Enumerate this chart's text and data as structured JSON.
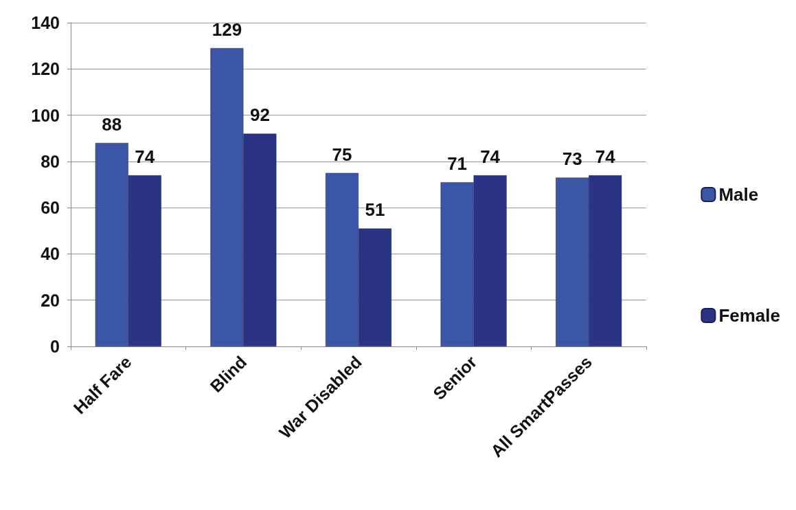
{
  "chart_data": {
    "type": "bar",
    "categories": [
      "Half Fare",
      "Blind",
      "War Disabled",
      "Senior",
      "All SmartPasses"
    ],
    "series": [
      {
        "name": "Male",
        "color": "#3c56a6",
        "values": [
          88,
          129,
          75,
          71,
          73
        ]
      },
      {
        "name": "Female",
        "color": "#2b3384",
        "values": [
          74,
          92,
          51,
          74,
          74
        ]
      }
    ],
    "ylim": [
      0,
      140
    ],
    "yticks": [
      0,
      20,
      40,
      60,
      80,
      100,
      120,
      140
    ],
    "grid": "y",
    "legend": "right",
    "data_labels": true
  }
}
